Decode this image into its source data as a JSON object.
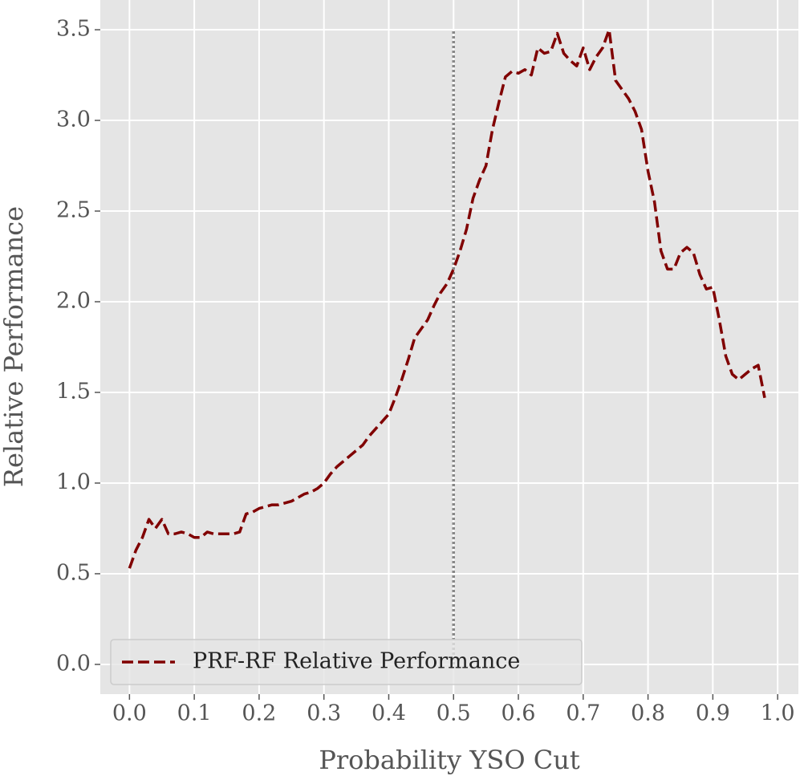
{
  "chart_data": {
    "type": "line",
    "xlabel": "Probability YSO Cut",
    "ylabel": "Relative Performance",
    "xlim": [
      -0.045,
      1.032
    ],
    "ylim": [
      -0.164,
      3.664
    ],
    "xticks": [
      {
        "value": 0,
        "label": "0.0"
      },
      0.1,
      0.2,
      0.3,
      0.4,
      0.5,
      0.6,
      0.7,
      0.8,
      0.9,
      {
        "value": 1,
        "label": "1.0"
      }
    ],
    "yticks": [
      {
        "value": 0,
        "label": "0.0"
      },
      0.5,
      {
        "value": 1,
        "label": "1.0"
      },
      1.5,
      {
        "value": 2,
        "label": "2.0"
      },
      2.5,
      {
        "value": 3,
        "label": "3.0"
      },
      3.5
    ],
    "grid": true,
    "legend": "lower left",
    "vline": {
      "x": 0.5,
      "ymin": 0,
      "ymax": 3.5,
      "color": "#888888"
    },
    "x": [
      0,
      0.01,
      0.02,
      0.03,
      0.04,
      0.05,
      0.06,
      0.07,
      0.08,
      0.09,
      0.1,
      0.11,
      0.12,
      0.13,
      0.14,
      0.15,
      0.16,
      0.17,
      0.18,
      0.19,
      0.2,
      0.21,
      0.22,
      0.23,
      0.24,
      0.25,
      0.26,
      0.27,
      0.28,
      0.29,
      0.3,
      0.31,
      0.32,
      0.33,
      0.34,
      0.35,
      0.36,
      0.37,
      0.38,
      0.39,
      0.4,
      0.41,
      0.42,
      0.43,
      0.44,
      0.45,
      0.46,
      0.47,
      0.48,
      0.49,
      0.5,
      0.51,
      0.52,
      0.53,
      0.54,
      0.55,
      0.56,
      0.57,
      0.58,
      0.59,
      0.6,
      0.61,
      0.62,
      0.63,
      0.64,
      0.65,
      0.66,
      0.67,
      0.68,
      0.69,
      0.7,
      0.71,
      0.72,
      0.73,
      0.74,
      0.75,
      0.76,
      0.77,
      0.78,
      0.79,
      0.8,
      0.81,
      0.82,
      0.83,
      0.84,
      0.85,
      0.86,
      0.87,
      0.88,
      0.89,
      0.9,
      0.91,
      0.92,
      0.93,
      0.94,
      0.95,
      0.96,
      0.97,
      0.98
    ],
    "series": [
      {
        "name": "PRF-RF Relative Performance",
        "color": "#800000",
        "values": [
          0.53,
          0.63,
          0.7,
          0.8,
          0.75,
          0.8,
          0.72,
          0.72,
          0.73,
          0.72,
          0.7,
          0.7,
          0.73,
          0.72,
          0.72,
          0.72,
          0.72,
          0.73,
          0.83,
          0.84,
          0.86,
          0.87,
          0.88,
          0.88,
          0.89,
          0.9,
          0.92,
          0.94,
          0.95,
          0.97,
          1.0,
          1.05,
          1.09,
          1.12,
          1.15,
          1.18,
          1.21,
          1.26,
          1.3,
          1.34,
          1.38,
          1.47,
          1.57,
          1.68,
          1.8,
          1.85,
          1.9,
          1.98,
          2.05,
          2.1,
          2.18,
          2.28,
          2.4,
          2.57,
          2.67,
          2.75,
          2.95,
          3.1,
          3.24,
          3.27,
          3.26,
          3.28,
          3.25,
          3.4,
          3.37,
          3.38,
          3.48,
          3.37,
          3.33,
          3.3,
          3.4,
          3.28,
          3.35,
          3.4,
          3.5,
          3.22,
          3.17,
          3.12,
          3.05,
          2.95,
          2.72,
          2.55,
          2.28,
          2.18,
          2.18,
          2.27,
          2.3,
          2.27,
          2.15,
          2.07,
          2.08,
          1.9,
          1.7,
          1.6,
          1.57,
          1.6,
          1.63,
          1.65,
          1.47
        ]
      }
    ]
  }
}
